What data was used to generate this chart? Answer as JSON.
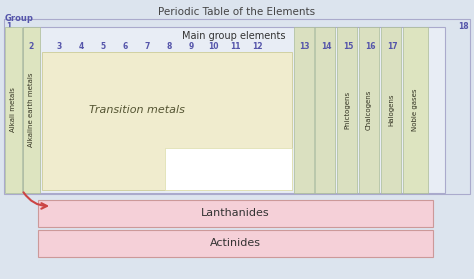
{
  "title": "Periodic Table of the Elements",
  "bg_color": "#dce4ee",
  "title_color": "#444444",
  "group_label_color": "#5555aa",
  "number_color": "#5555aa",
  "colors": {
    "outer_fill": "#dce4ee",
    "outer_edge": "#aaaacc",
    "main_grp_fill": "#e8edf5",
    "main_grp_edge": "#aaaacc",
    "transition_fill": "#f0ecce",
    "transition_edge": "#cccc99",
    "col_fill": "#dae0c0",
    "col_edge": "#aabb99",
    "alkali_fill": "#dde4c0",
    "noble_fill": "#dde4c0",
    "lanthanides_fill": "#f5d0d8",
    "lanthanides_edge": "#cc9999",
    "actinides_fill": "#f5d0d8",
    "actinides_edge": "#cc9999",
    "white_box": "#ffffff"
  },
  "vertical_labels": {
    "alkali": "Alkali metals",
    "alkaline": "Alkaline earth metals",
    "pnictogens": "Pnictogens",
    "chalcogens": "Chalcogens",
    "halogens": "Halogens",
    "noble": "Noble gases"
  },
  "box_labels": {
    "main_group": "Main group elements",
    "transition": "Transition metals",
    "lanthanides": "Lanthanides",
    "actinides": "Actinides"
  },
  "arrow_color": "#cc4444",
  "figsize": [
    4.74,
    2.79
  ],
  "dpi": 100
}
